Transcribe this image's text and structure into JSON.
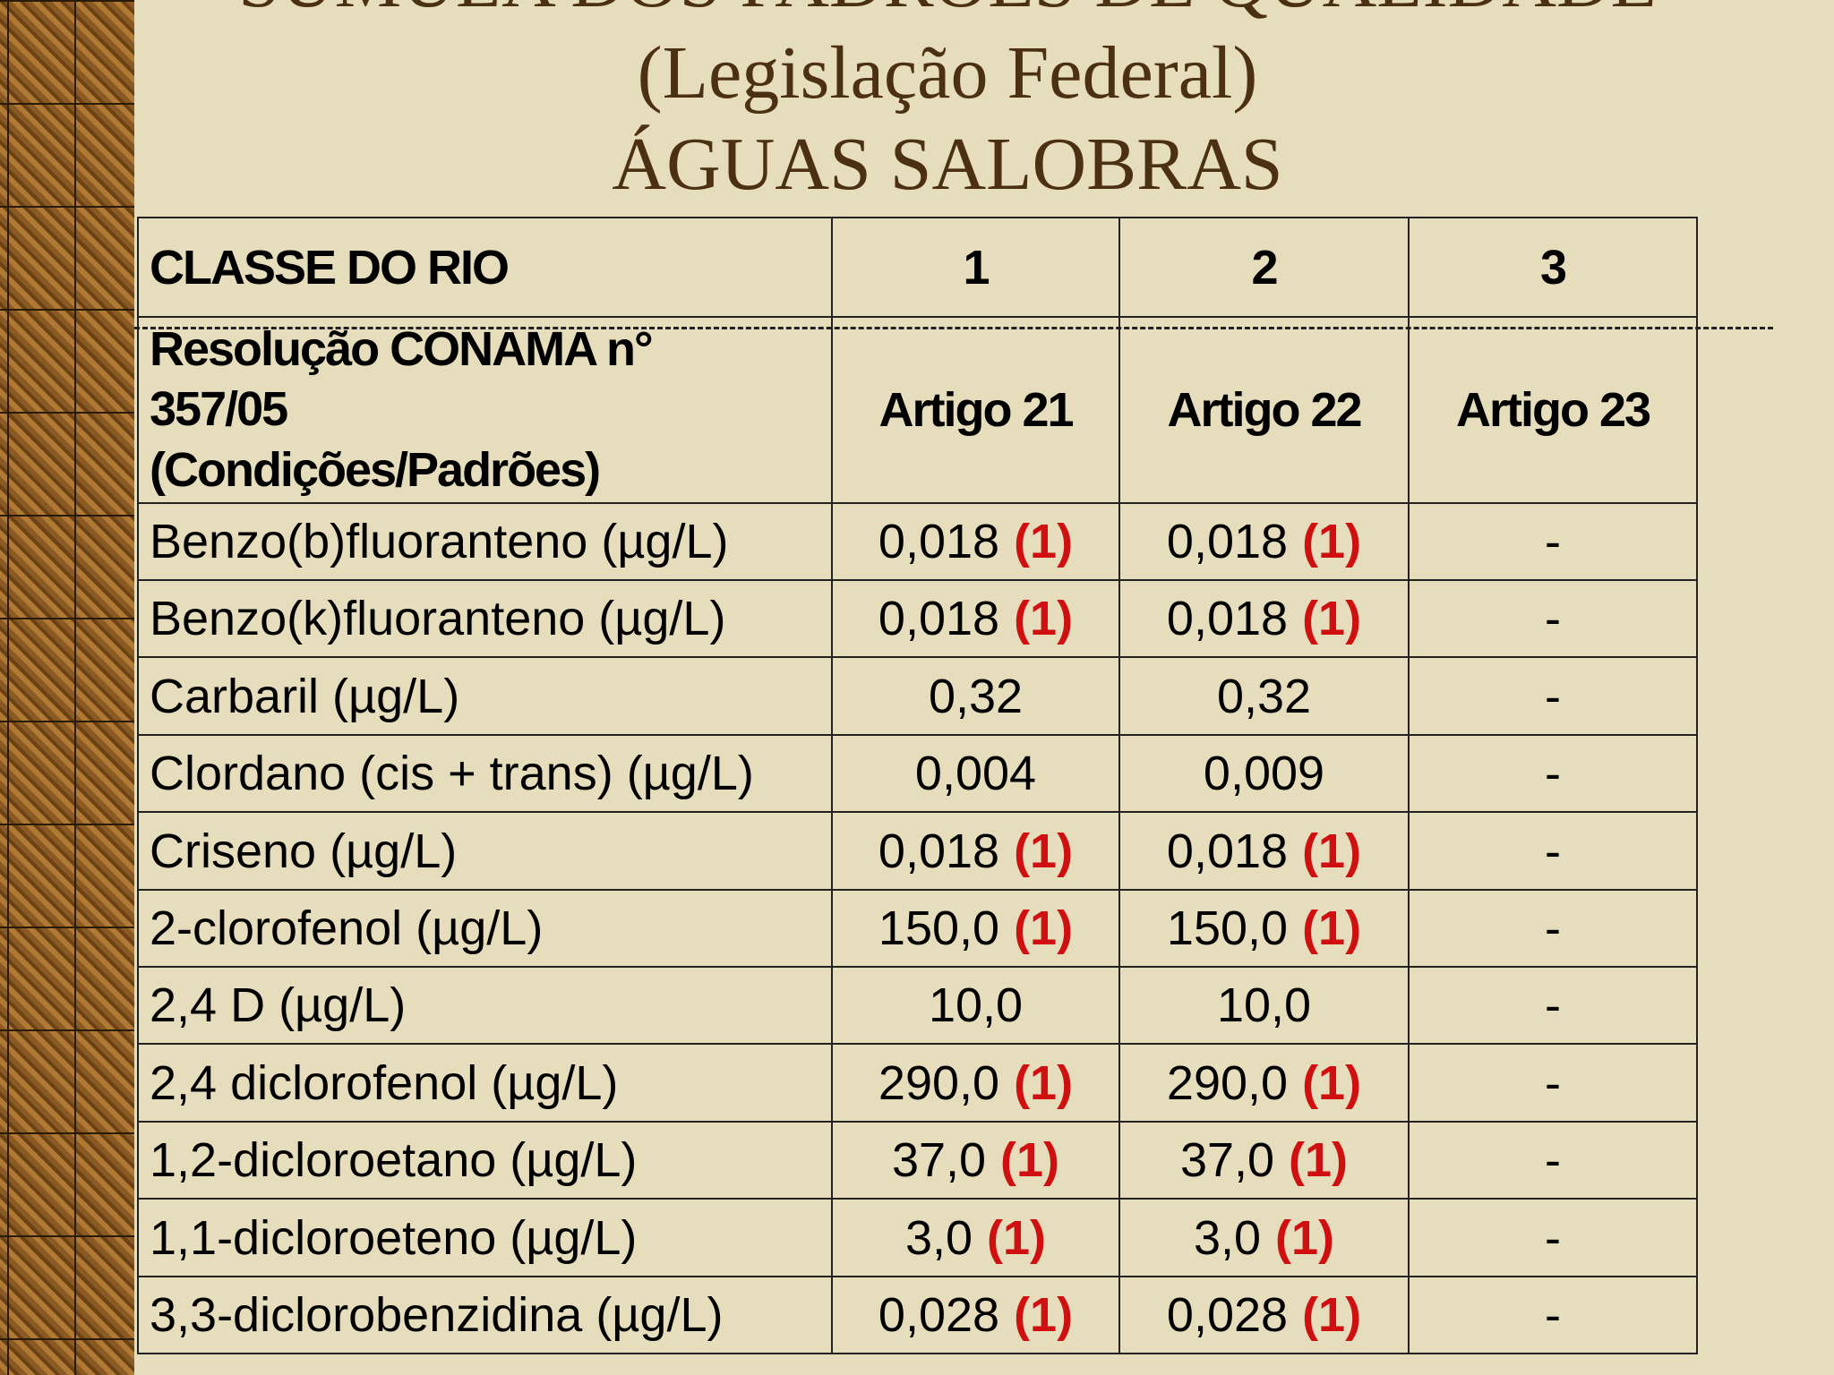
{
  "header": {
    "title_lines": [
      "SÚMULA DOS PADRÕES DE QUALIDADE",
      "(Legislação Federal)",
      "ÁGUAS  SALOBRAS"
    ]
  },
  "table": {
    "header": [
      "CLASSE DO RIO",
      "1",
      "2",
      "3"
    ],
    "subheader": [
      [
        "Resolução CONAMA n°",
        "357/05",
        "(Condições/Padrões)"
      ],
      "Artigo 21",
      "Artigo 22",
      "Artigo 23"
    ],
    "rows": [
      [
        "Benzo(b)fluoranteno (µg/L)",
        {
          "value": "0,018",
          "note": "(1)"
        },
        {
          "value": "0,018",
          "note": "(1)"
        },
        "-"
      ],
      [
        "Benzo(k)fluoranteno (µg/L)",
        {
          "value": "0,018",
          "note": "(1)"
        },
        {
          "value": "0,018",
          "note": "(1)"
        },
        "-"
      ],
      [
        "Carbaril (µg/L)",
        "0,32",
        "0,32",
        "-"
      ],
      [
        "Clordano (cis + trans) (µg/L)",
        "0,004",
        "0,009",
        "-"
      ],
      [
        "Criseno (µg/L)",
        {
          "value": "0,018",
          "note": "(1)"
        },
        {
          "value": "0,018",
          "note": "(1)"
        },
        "-"
      ],
      [
        "2-clorofenol (µg/L)",
        {
          "value": "150,0",
          "note": "(1)"
        },
        {
          "value": "150,0",
          "note": "(1)"
        },
        "-"
      ],
      [
        "2,4 D (µg/L)",
        "10,0",
        "10,0",
        "-"
      ],
      [
        "2,4 diclorofenol (µg/L)",
        {
          "value": "290,0",
          "note": "(1)"
        },
        {
          "value": "290,0",
          "note": "(1)"
        },
        "-"
      ],
      [
        "1,2-dicloroetano (µg/L)",
        {
          "value": "37,0",
          "note": "(1)"
        },
        {
          "value": "37,0",
          "note": "(1)"
        },
        "-"
      ],
      [
        "1,1-dicloroeteno (µg/L)",
        {
          "value": "3,0",
          "note": "(1)"
        },
        {
          "value": "3,0",
          "note": "(1)"
        },
        "-"
      ],
      [
        "3,3-diclorobenzidina (µg/L)",
        {
          "value": "0,028",
          "note": "(1)"
        },
        {
          "value": "0,028",
          "note": "(1)"
        },
        "-"
      ]
    ]
  }
}
